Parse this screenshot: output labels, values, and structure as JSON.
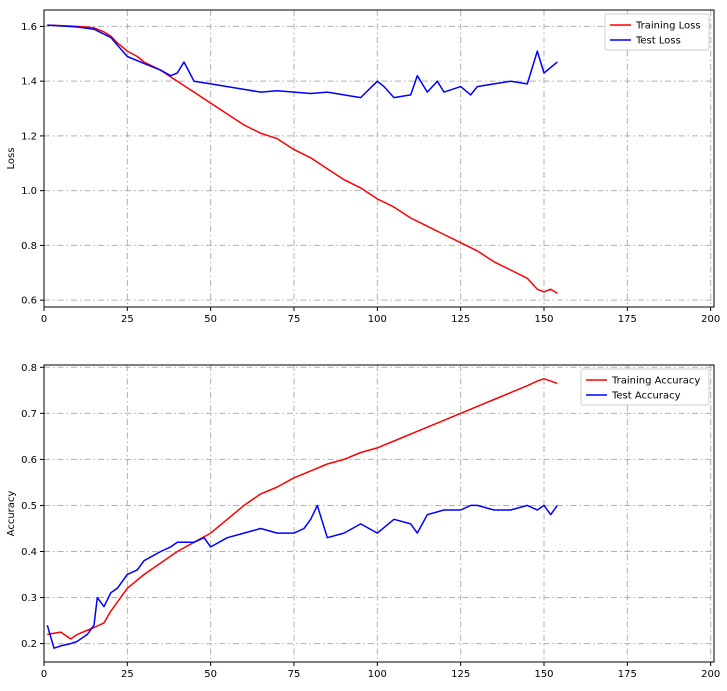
{
  "chart_data": [
    {
      "type": "line",
      "title": "",
      "xlabel": "",
      "ylabel": "Loss",
      "xlim": [
        0,
        201
      ],
      "ylim": [
        0.575,
        1.66
      ],
      "xticks": [
        0,
        25,
        50,
        75,
        100,
        125,
        150,
        175,
        200
      ],
      "yticks": [
        0.6,
        0.8,
        1.0,
        1.2,
        1.4,
        1.6
      ],
      "ytick_labels": [
        "0.6",
        "0.8",
        "1.0",
        "1.2",
        "1.4",
        "1.6"
      ],
      "grid": true,
      "legend_position": "top-right",
      "colors": {
        "Training Loss": "#ff0000",
        "Test Loss": "#0000ff"
      },
      "series": [
        {
          "name": "Training Loss",
          "x": [
            1,
            5,
            10,
            15,
            18,
            20,
            22,
            25,
            28,
            30,
            35,
            40,
            45,
            50,
            55,
            60,
            65,
            70,
            75,
            80,
            85,
            90,
            95,
            100,
            105,
            110,
            115,
            120,
            125,
            130,
            135,
            140,
            145,
            148,
            150,
            152,
            154
          ],
          "values": [
            1.605,
            1.603,
            1.6,
            1.595,
            1.58,
            1.565,
            1.54,
            1.51,
            1.49,
            1.47,
            1.44,
            1.4,
            1.36,
            1.32,
            1.28,
            1.24,
            1.21,
            1.19,
            1.15,
            1.12,
            1.08,
            1.04,
            1.01,
            0.97,
            0.94,
            0.9,
            0.87,
            0.84,
            0.81,
            0.78,
            0.74,
            0.71,
            0.68,
            0.64,
            0.63,
            0.64,
            0.625
          ]
        },
        {
          "name": "Test Loss",
          "x": [
            1,
            5,
            10,
            15,
            20,
            25,
            30,
            35,
            38,
            40,
            42,
            45,
            50,
            55,
            60,
            65,
            70,
            75,
            80,
            85,
            90,
            95,
            100,
            102,
            105,
            110,
            112,
            115,
            118,
            120,
            125,
            128,
            130,
            135,
            140,
            145,
            148,
            150,
            153,
            154
          ],
          "values": [
            1.605,
            1.602,
            1.598,
            1.59,
            1.56,
            1.49,
            1.465,
            1.44,
            1.42,
            1.43,
            1.47,
            1.4,
            1.39,
            1.38,
            1.37,
            1.36,
            1.365,
            1.36,
            1.355,
            1.36,
            1.35,
            1.34,
            1.4,
            1.38,
            1.34,
            1.35,
            1.42,
            1.36,
            1.4,
            1.36,
            1.38,
            1.35,
            1.38,
            1.39,
            1.4,
            1.39,
            1.51,
            1.43,
            1.46,
            1.47
          ]
        }
      ]
    },
    {
      "type": "line",
      "title": "",
      "xlabel": "",
      "ylabel": "Accuracy",
      "xlim": [
        0,
        201
      ],
      "ylim": [
        0.16,
        0.805
      ],
      "xticks": [
        0,
        25,
        50,
        75,
        100,
        125,
        150,
        175,
        200
      ],
      "yticks": [
        0.2,
        0.3,
        0.4,
        0.5,
        0.6,
        0.7,
        0.8
      ],
      "ytick_labels": [
        "0.2",
        "0.3",
        "0.4",
        "0.5",
        "0.6",
        "0.7",
        "0.8"
      ],
      "grid": true,
      "legend_position": "top-right",
      "colors": {
        "Training Accuracy": "#ff0000",
        "Test Accuracy": "#0000ff"
      },
      "series": [
        {
          "name": "Training Accuracy",
          "x": [
            1,
            5,
            8,
            10,
            15,
            18,
            20,
            25,
            30,
            35,
            40,
            45,
            50,
            55,
            60,
            65,
            70,
            75,
            80,
            85,
            90,
            95,
            100,
            105,
            110,
            115,
            120,
            125,
            130,
            135,
            140,
            145,
            148,
            150,
            152,
            154
          ],
          "values": [
            0.22,
            0.225,
            0.21,
            0.22,
            0.235,
            0.245,
            0.27,
            0.32,
            0.35,
            0.375,
            0.4,
            0.42,
            0.44,
            0.47,
            0.5,
            0.525,
            0.54,
            0.56,
            0.575,
            0.59,
            0.6,
            0.615,
            0.625,
            0.64,
            0.655,
            0.67,
            0.685,
            0.7,
            0.715,
            0.73,
            0.745,
            0.76,
            0.77,
            0.775,
            0.77,
            0.765
          ]
        },
        {
          "name": "Test Accuracy",
          "x": [
            1,
            3,
            5,
            8,
            10,
            13,
            15,
            16,
            18,
            20,
            22,
            25,
            28,
            30,
            35,
            38,
            40,
            45,
            48,
            50,
            55,
            60,
            65,
            70,
            75,
            78,
            80,
            82,
            85,
            90,
            95,
            100,
            105,
            110,
            112,
            115,
            120,
            125,
            128,
            130,
            135,
            140,
            145,
            148,
            150,
            152,
            154
          ],
          "values": [
            0.24,
            0.19,
            0.195,
            0.2,
            0.205,
            0.22,
            0.24,
            0.3,
            0.28,
            0.31,
            0.32,
            0.35,
            0.36,
            0.38,
            0.4,
            0.41,
            0.42,
            0.42,
            0.43,
            0.41,
            0.43,
            0.44,
            0.45,
            0.44,
            0.44,
            0.45,
            0.47,
            0.5,
            0.43,
            0.44,
            0.46,
            0.44,
            0.47,
            0.46,
            0.44,
            0.48,
            0.49,
            0.49,
            0.5,
            0.5,
            0.49,
            0.49,
            0.5,
            0.49,
            0.5,
            0.48,
            0.5
          ]
        }
      ]
    }
  ]
}
